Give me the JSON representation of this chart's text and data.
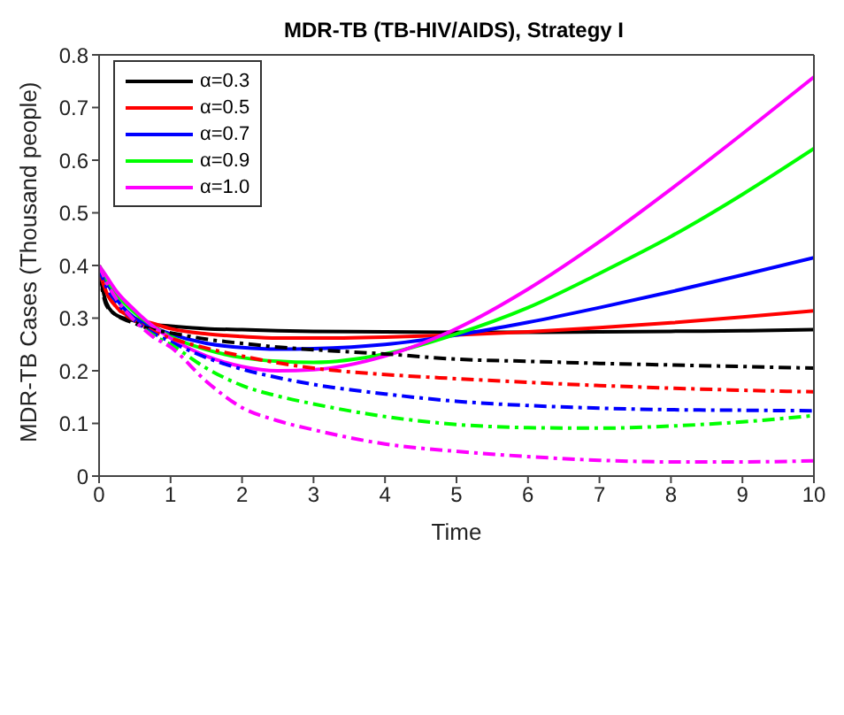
{
  "chart_data": {
    "type": "line",
    "title": "MDR-TB (TB-HIV/AIDS), Strategy I",
    "xlabel": "Time",
    "ylabel": "MDR-TB Cases (Thousand people)",
    "x": [
      0,
      0.1,
      0.25,
      0.5,
      0.75,
      1,
      1.5,
      2,
      2.5,
      3,
      4,
      5,
      6,
      7,
      8,
      9,
      10
    ],
    "xlim": [
      0,
      10
    ],
    "xticks": [
      0,
      1,
      2,
      3,
      4,
      5,
      6,
      7,
      8,
      9,
      10
    ],
    "ylim": [
      0,
      0.8
    ],
    "yticks": [
      0,
      0.1,
      0.2,
      0.3,
      0.4,
      0.5,
      0.6,
      0.7,
      0.8
    ],
    "grid": false,
    "legend": "top left",
    "marker": "none",
    "series": [
      {
        "name": "α=0.3",
        "color": "#000000",
        "line_style": "solid",
        "values": [
          0.39,
          0.33,
          0.305,
          0.295,
          0.288,
          0.285,
          0.28,
          0.278,
          0.276,
          0.275,
          0.274,
          0.273,
          0.273,
          0.274,
          0.275,
          0.276,
          0.278
        ]
      },
      {
        "name": "α=0.5",
        "color": "#ff0000",
        "line_style": "solid",
        "values": [
          0.39,
          0.35,
          0.32,
          0.3,
          0.29,
          0.28,
          0.27,
          0.265,
          0.262,
          0.262,
          0.264,
          0.268,
          0.274,
          0.282,
          0.291,
          0.302,
          0.314
        ]
      },
      {
        "name": "α=0.7",
        "color": "#0000ff",
        "line_style": "solid",
        "values": [
          0.395,
          0.37,
          0.335,
          0.3,
          0.283,
          0.27,
          0.252,
          0.244,
          0.241,
          0.242,
          0.25,
          0.268,
          0.292,
          0.32,
          0.35,
          0.382,
          0.415
        ]
      },
      {
        "name": "α=0.9",
        "color": "#00ff00",
        "line_style": "solid",
        "values": [
          0.4,
          0.375,
          0.345,
          0.31,
          0.285,
          0.265,
          0.24,
          0.225,
          0.218,
          0.216,
          0.232,
          0.27,
          0.32,
          0.385,
          0.455,
          0.535,
          0.622
        ]
      },
      {
        "name": "α=1.0",
        "color": "#ff00ff",
        "line_style": "solid",
        "values": [
          0.4,
          0.38,
          0.35,
          0.315,
          0.285,
          0.262,
          0.228,
          0.208,
          0.2,
          0.202,
          0.228,
          0.28,
          0.355,
          0.445,
          0.545,
          0.65,
          0.758
        ]
      },
      {
        "color": "#000000",
        "line_style": "dashed",
        "values": [
          0.39,
          0.325,
          0.305,
          0.29,
          0.278,
          0.272,
          0.26,
          0.252,
          0.245,
          0.24,
          0.232,
          0.222,
          0.218,
          0.214,
          0.211,
          0.208,
          0.205
        ]
      },
      {
        "color": "#ff0000",
        "line_style": "dashed",
        "values": [
          0.39,
          0.35,
          0.32,
          0.295,
          0.275,
          0.262,
          0.243,
          0.228,
          0.215,
          0.205,
          0.193,
          0.185,
          0.178,
          0.172,
          0.167,
          0.163,
          0.16
        ]
      },
      {
        "color": "#0000ff",
        "line_style": "dashed",
        "values": [
          0.395,
          0.36,
          0.33,
          0.295,
          0.272,
          0.255,
          0.225,
          0.203,
          0.187,
          0.174,
          0.156,
          0.142,
          0.134,
          0.129,
          0.126,
          0.125,
          0.124
        ]
      },
      {
        "color": "#00ff00",
        "line_style": "dashed",
        "values": [
          0.4,
          0.37,
          0.335,
          0.295,
          0.268,
          0.25,
          0.205,
          0.172,
          0.152,
          0.137,
          0.113,
          0.098,
          0.092,
          0.091,
          0.095,
          0.103,
          0.115
        ]
      },
      {
        "color": "#ff00ff",
        "line_style": "dashed",
        "values": [
          0.4,
          0.37,
          0.335,
          0.295,
          0.265,
          0.245,
          0.18,
          0.13,
          0.105,
          0.088,
          0.061,
          0.047,
          0.037,
          0.03,
          0.027,
          0.027,
          0.029
        ]
      }
    ]
  }
}
